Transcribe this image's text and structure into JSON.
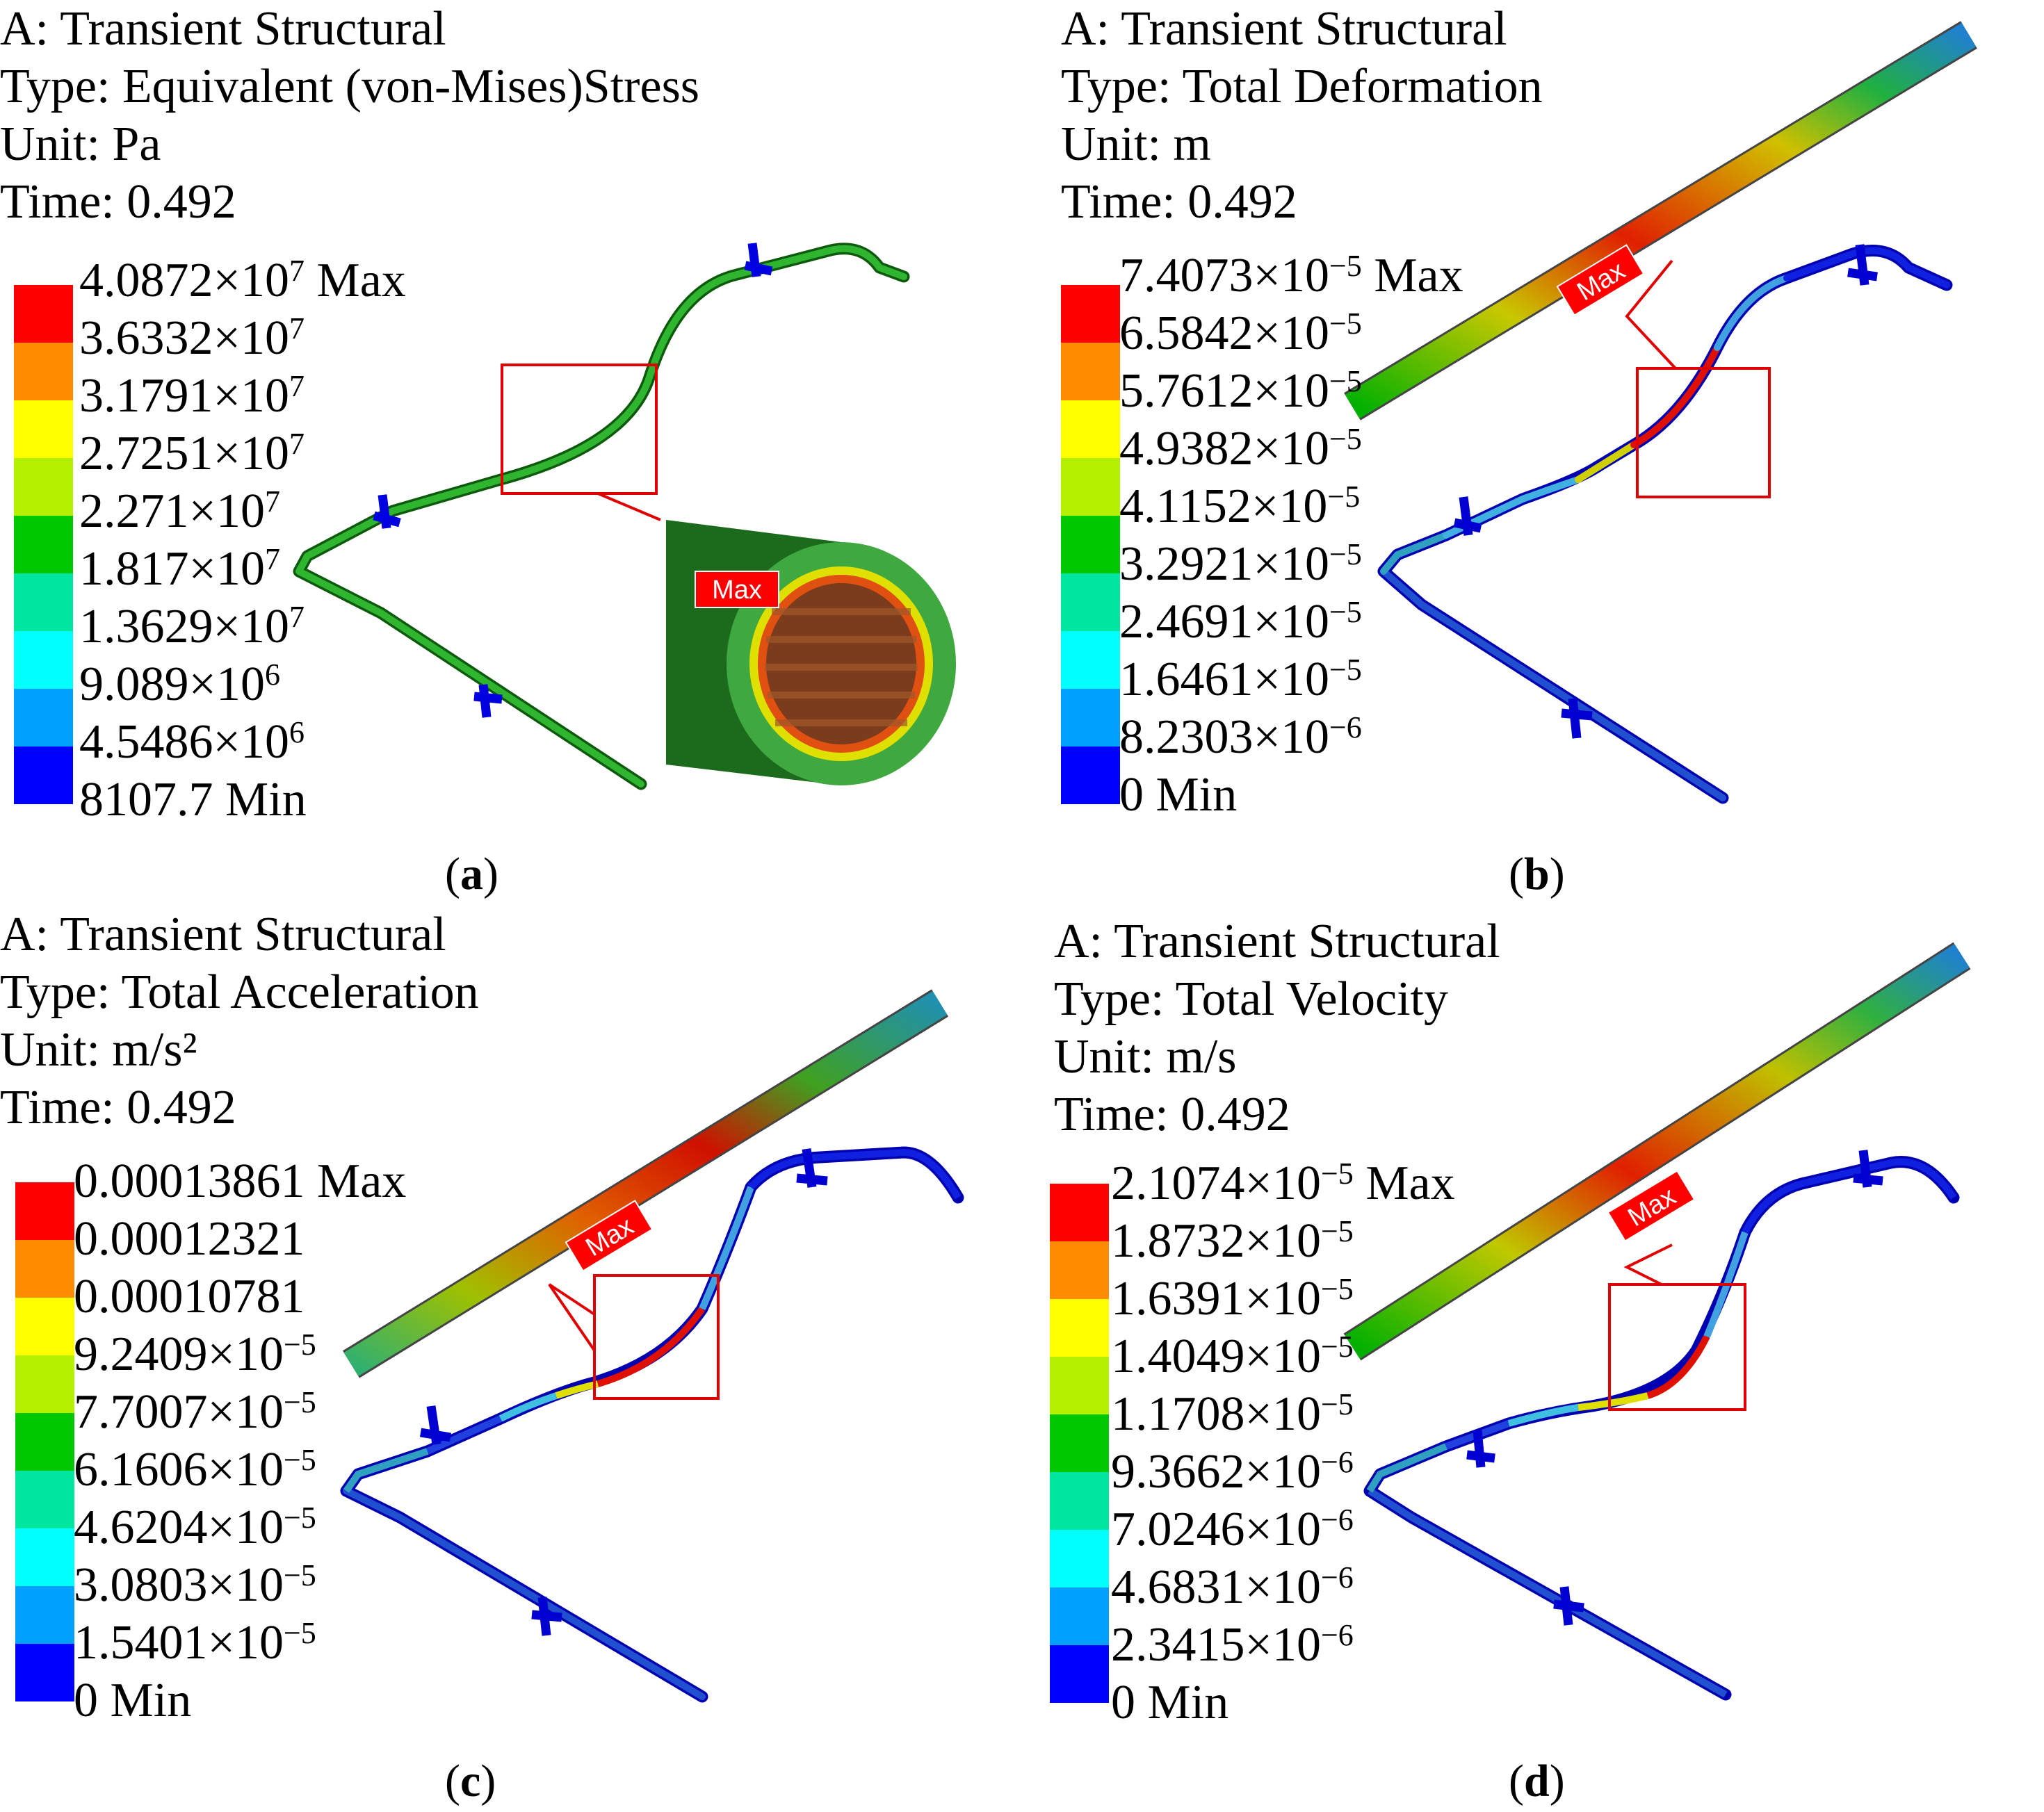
{
  "colormap": [
    "#ff0000",
    "#ff8c00",
    "#ffff00",
    "#b4f000",
    "#00c800",
    "#00e6a0",
    "#00ffff",
    "#00a0ff",
    "#0000ff"
  ],
  "panels": [
    {
      "id": "a",
      "header": [
        "A: Transient Structural",
        "Type: Equivalent (von-Mises)Stress",
        "Unit: Pa",
        "Time: 0.492"
      ],
      "legend": [
        {
          "base": "4.0872×10",
          "exp": "7",
          "suffix": " Max"
        },
        {
          "base": "3.6332×10",
          "exp": "7",
          "suffix": ""
        },
        {
          "base": "3.1791×10",
          "exp": "7",
          "suffix": ""
        },
        {
          "base": "2.7251×10",
          "exp": "7",
          "suffix": ""
        },
        {
          "base": "2.271×10",
          "exp": "7",
          "suffix": ""
        },
        {
          "base": "1.817×10",
          "exp": "7",
          "suffix": ""
        },
        {
          "base": "1.3629×10",
          "exp": "7",
          "suffix": ""
        },
        {
          "base": "9.089×10",
          "exp": "6",
          "suffix": ""
        },
        {
          "base": "4.5486×10",
          "exp": "6",
          "suffix": ""
        },
        {
          "base": "8107.7",
          "exp": "",
          "suffix": " Min"
        }
      ],
      "max_label": "Max",
      "caption": "a"
    },
    {
      "id": "b",
      "header": [
        "A: Transient Structural",
        "Type: Total Deformation",
        "Unit: m",
        "Time: 0.492"
      ],
      "legend": [
        {
          "base": "7.4073×10",
          "exp": "−5",
          "suffix": " Max"
        },
        {
          "base": "6.5842×10",
          "exp": "−5",
          "suffix": ""
        },
        {
          "base": "5.7612×10",
          "exp": "−5",
          "suffix": ""
        },
        {
          "base": "4.9382×10",
          "exp": "−5",
          "suffix": ""
        },
        {
          "base": "4.1152×10",
          "exp": "−5",
          "suffix": ""
        },
        {
          "base": "3.2921×10",
          "exp": "−5",
          "suffix": ""
        },
        {
          "base": "2.4691×10",
          "exp": "−5",
          "suffix": ""
        },
        {
          "base": "1.6461×10",
          "exp": "−5",
          "suffix": ""
        },
        {
          "base": "8.2303×10",
          "exp": "−6",
          "suffix": ""
        },
        {
          "base": "0",
          "exp": "",
          "suffix": " Min"
        }
      ],
      "max_label": "Max",
      "caption": "b"
    },
    {
      "id": "c",
      "header": [
        "A: Transient Structural",
        "Type: Total Acceleration",
        "Unit:  m/s²",
        "Time: 0.492"
      ],
      "legend": [
        {
          "base": "0.00013861",
          "exp": "",
          "suffix": " Max"
        },
        {
          "base": "0.00012321",
          "exp": "",
          "suffix": ""
        },
        {
          "base": "0.00010781",
          "exp": "",
          "suffix": ""
        },
        {
          "base": "9.2409×10",
          "exp": "−5",
          "suffix": ""
        },
        {
          "base": "7.7007×10",
          "exp": "−5",
          "suffix": ""
        },
        {
          "base": "6.1606×10",
          "exp": "−5",
          "suffix": ""
        },
        {
          "base": "4.6204×10",
          "exp": "−5",
          "suffix": ""
        },
        {
          "base": "3.0803×10",
          "exp": "−5",
          "suffix": ""
        },
        {
          "base": "1.5401×10",
          "exp": "−5",
          "suffix": ""
        },
        {
          "base": "0",
          "exp": "",
          "suffix": " Min"
        }
      ],
      "max_label": "Max",
      "caption": "c"
    },
    {
      "id": "d",
      "header": [
        "A: Transient Structural",
        "Type: Total Velocity",
        "Unit: m/s",
        "Time: 0.492"
      ],
      "legend": [
        {
          "base": "2.1074×10",
          "exp": "−5",
          "suffix": " Max"
        },
        {
          "base": "1.8732×10",
          "exp": "−5",
          "suffix": ""
        },
        {
          "base": "1.6391×10",
          "exp": "−5",
          "suffix": ""
        },
        {
          "base": "1.4049×10",
          "exp": "−5",
          "suffix": ""
        },
        {
          "base": "1.1708×10",
          "exp": "−5",
          "suffix": ""
        },
        {
          "base": "9.3662×10",
          "exp": "−6",
          "suffix": ""
        },
        {
          "base": "7.0246×10",
          "exp": "−6",
          "suffix": ""
        },
        {
          "base": "4.6831×10",
          "exp": "−6",
          "suffix": ""
        },
        {
          "base": "2.3415×10",
          "exp": "−6",
          "suffix": ""
        },
        {
          "base": "0",
          "exp": "",
          "suffix": " Min"
        }
      ],
      "max_label": "Max",
      "caption": "d"
    }
  ]
}
